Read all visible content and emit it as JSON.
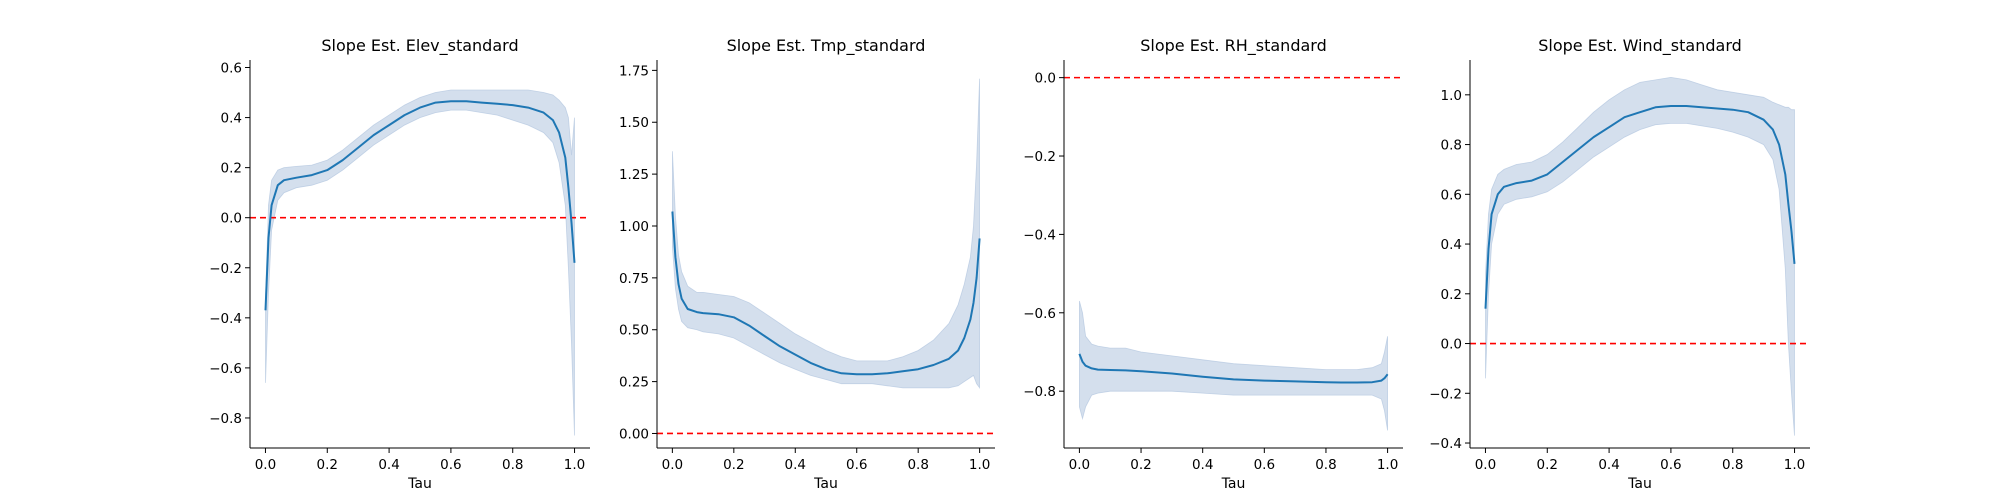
{
  "chart_data": [
    {
      "type": "line",
      "title": "Slope Est. Elev_standard",
      "xlabel": "Tau",
      "ylabel": "",
      "xlim": [
        -0.05,
        1.05
      ],
      "ylim": [
        -0.92,
        0.63
      ],
      "xticks": [
        0.0,
        0.2,
        0.4,
        0.6,
        0.8,
        1.0
      ],
      "xtick_labels": [
        "0.0",
        "0.2",
        "0.4",
        "0.6",
        "0.8",
        "1.0"
      ],
      "yticks": [
        -0.8,
        -0.6,
        -0.4,
        -0.2,
        0.0,
        0.2,
        0.4,
        0.6
      ],
      "ytick_labels": [
        "−0.8",
        "−0.6",
        "−0.4",
        "−0.2",
        "0.0",
        "0.2",
        "0.4",
        "0.6"
      ],
      "reference_line": 0.0,
      "x": [
        0.0,
        0.01,
        0.02,
        0.04,
        0.06,
        0.1,
        0.15,
        0.2,
        0.25,
        0.3,
        0.35,
        0.4,
        0.45,
        0.5,
        0.55,
        0.6,
        0.65,
        0.7,
        0.75,
        0.8,
        0.85,
        0.9,
        0.93,
        0.95,
        0.97,
        0.98,
        0.99,
        1.0
      ],
      "y": [
        -0.37,
        -0.08,
        0.05,
        0.13,
        0.15,
        0.16,
        0.17,
        0.19,
        0.23,
        0.28,
        0.33,
        0.37,
        0.41,
        0.44,
        0.46,
        0.465,
        0.465,
        0.46,
        0.455,
        0.45,
        0.44,
        0.42,
        0.39,
        0.34,
        0.24,
        0.12,
        -0.02,
        -0.18
      ],
      "lower": [
        -0.66,
        -0.3,
        -0.05,
        0.07,
        0.1,
        0.12,
        0.13,
        0.15,
        0.19,
        0.24,
        0.29,
        0.33,
        0.37,
        0.4,
        0.42,
        0.43,
        0.43,
        0.42,
        0.41,
        0.39,
        0.37,
        0.34,
        0.3,
        0.22,
        0.05,
        -0.2,
        -0.5,
        -0.87
      ],
      "upper": [
        -0.32,
        0.05,
        0.15,
        0.19,
        0.2,
        0.205,
        0.21,
        0.23,
        0.27,
        0.32,
        0.37,
        0.41,
        0.45,
        0.48,
        0.5,
        0.51,
        0.51,
        0.51,
        0.51,
        0.51,
        0.51,
        0.5,
        0.49,
        0.47,
        0.44,
        0.4,
        0.25,
        0.4
      ]
    },
    {
      "type": "line",
      "title": "Slope Est. Tmp_standard",
      "xlabel": "Tau",
      "ylabel": "",
      "xlim": [
        -0.05,
        1.05
      ],
      "ylim": [
        -0.07,
        1.8
      ],
      "xticks": [
        0.0,
        0.2,
        0.4,
        0.6,
        0.8,
        1.0
      ],
      "xtick_labels": [
        "0.0",
        "0.2",
        "0.4",
        "0.6",
        "0.8",
        "1.0"
      ],
      "yticks": [
        0.0,
        0.25,
        0.5,
        0.75,
        1.0,
        1.25,
        1.5,
        1.75
      ],
      "ytick_labels": [
        "0.00",
        "0.25",
        "0.50",
        "0.75",
        "1.00",
        "1.25",
        "1.50",
        "1.75"
      ],
      "reference_line": 0.0,
      "x": [
        0.0,
        0.01,
        0.02,
        0.03,
        0.05,
        0.08,
        0.1,
        0.15,
        0.2,
        0.25,
        0.3,
        0.35,
        0.4,
        0.45,
        0.5,
        0.55,
        0.6,
        0.65,
        0.7,
        0.75,
        0.8,
        0.85,
        0.9,
        0.93,
        0.95,
        0.97,
        0.98,
        0.99,
        1.0
      ],
      "y": [
        1.07,
        0.85,
        0.72,
        0.65,
        0.6,
        0.585,
        0.58,
        0.575,
        0.56,
        0.52,
        0.47,
        0.42,
        0.38,
        0.34,
        0.31,
        0.29,
        0.285,
        0.285,
        0.29,
        0.3,
        0.31,
        0.33,
        0.36,
        0.4,
        0.46,
        0.55,
        0.63,
        0.75,
        0.94
      ],
      "lower": [
        0.9,
        0.7,
        0.6,
        0.54,
        0.51,
        0.5,
        0.49,
        0.48,
        0.46,
        0.42,
        0.38,
        0.34,
        0.31,
        0.28,
        0.26,
        0.24,
        0.24,
        0.24,
        0.23,
        0.22,
        0.22,
        0.22,
        0.22,
        0.23,
        0.25,
        0.27,
        0.28,
        0.24,
        0.22
      ],
      "upper": [
        1.36,
        1.05,
        0.86,
        0.78,
        0.71,
        0.68,
        0.68,
        0.67,
        0.66,
        0.63,
        0.58,
        0.53,
        0.48,
        0.44,
        0.4,
        0.37,
        0.35,
        0.35,
        0.35,
        0.37,
        0.4,
        0.45,
        0.53,
        0.62,
        0.72,
        0.85,
        1.0,
        1.3,
        1.71
      ]
    },
    {
      "type": "line",
      "title": "Slope Est. RH_standard",
      "xlabel": "Tau",
      "ylabel": "",
      "xlim": [
        -0.05,
        1.05
      ],
      "ylim": [
        -0.945,
        0.045
      ],
      "xticks": [
        0.0,
        0.2,
        0.4,
        0.6,
        0.8,
        1.0
      ],
      "xtick_labels": [
        "0.0",
        "0.2",
        "0.4",
        "0.6",
        "0.8",
        "1.0"
      ],
      "yticks": [
        -0.8,
        -0.6,
        -0.4,
        -0.2,
        0.0
      ],
      "ytick_labels": [
        "−0.8",
        "−0.6",
        "−0.4",
        "−0.2",
        "0.0"
      ],
      "reference_line": 0.0,
      "x": [
        0.0,
        0.01,
        0.02,
        0.04,
        0.06,
        0.1,
        0.15,
        0.2,
        0.3,
        0.4,
        0.5,
        0.6,
        0.7,
        0.8,
        0.85,
        0.9,
        0.95,
        0.98,
        0.99,
        1.0
      ],
      "y": [
        -0.705,
        -0.725,
        -0.735,
        -0.742,
        -0.745,
        -0.746,
        -0.747,
        -0.749,
        -0.755,
        -0.763,
        -0.77,
        -0.773,
        -0.775,
        -0.777,
        -0.778,
        -0.778,
        -0.777,
        -0.773,
        -0.767,
        -0.757
      ],
      "lower": [
        -0.84,
        -0.87,
        -0.84,
        -0.81,
        -0.805,
        -0.8,
        -0.8,
        -0.8,
        -0.8,
        -0.805,
        -0.81,
        -0.81,
        -0.81,
        -0.81,
        -0.81,
        -0.81,
        -0.81,
        -0.82,
        -0.85,
        -0.9
      ],
      "upper": [
        -0.57,
        -0.6,
        -0.66,
        -0.68,
        -0.685,
        -0.69,
        -0.69,
        -0.7,
        -0.71,
        -0.72,
        -0.73,
        -0.735,
        -0.74,
        -0.745,
        -0.745,
        -0.745,
        -0.74,
        -0.73,
        -0.7,
        -0.66
      ]
    },
    {
      "type": "line",
      "title": "Slope Est. Wind_standard",
      "xlabel": "Tau",
      "ylabel": "",
      "xlim": [
        -0.05,
        1.05
      ],
      "ylim": [
        -0.42,
        1.14
      ],
      "xticks": [
        0.0,
        0.2,
        0.4,
        0.6,
        0.8,
        1.0
      ],
      "xtick_labels": [
        "0.0",
        "0.2",
        "0.4",
        "0.6",
        "0.8",
        "1.0"
      ],
      "yticks": [
        -0.4,
        -0.2,
        0.0,
        0.2,
        0.4,
        0.6,
        0.8,
        1.0
      ],
      "ytick_labels": [
        "−0.4",
        "−0.2",
        "0.0",
        "0.2",
        "0.4",
        "0.6",
        "0.8",
        "1.0"
      ],
      "reference_line": 0.0,
      "x": [
        0.0,
        0.01,
        0.02,
        0.04,
        0.06,
        0.1,
        0.15,
        0.2,
        0.25,
        0.3,
        0.35,
        0.4,
        0.45,
        0.5,
        0.55,
        0.6,
        0.65,
        0.7,
        0.75,
        0.8,
        0.85,
        0.9,
        0.93,
        0.95,
        0.97,
        0.98,
        0.99,
        1.0
      ],
      "y": [
        0.14,
        0.38,
        0.52,
        0.6,
        0.63,
        0.645,
        0.655,
        0.68,
        0.73,
        0.78,
        0.83,
        0.87,
        0.91,
        0.93,
        0.95,
        0.955,
        0.955,
        0.95,
        0.945,
        0.94,
        0.93,
        0.9,
        0.86,
        0.8,
        0.68,
        0.56,
        0.45,
        0.32
      ],
      "lower": [
        -0.14,
        0.2,
        0.4,
        0.52,
        0.56,
        0.58,
        0.59,
        0.61,
        0.65,
        0.7,
        0.75,
        0.79,
        0.83,
        0.86,
        0.88,
        0.885,
        0.885,
        0.875,
        0.865,
        0.85,
        0.83,
        0.8,
        0.74,
        0.62,
        0.3,
        0.0,
        -0.2,
        -0.37
      ],
      "upper": [
        0.28,
        0.52,
        0.62,
        0.68,
        0.7,
        0.72,
        0.73,
        0.76,
        0.81,
        0.87,
        0.93,
        0.98,
        1.02,
        1.05,
        1.06,
        1.07,
        1.06,
        1.04,
        1.02,
        1.01,
        1.0,
        0.99,
        0.97,
        0.96,
        0.95,
        0.95,
        0.94,
        0.94
      ]
    }
  ],
  "colors": {
    "line": "#1f77b4",
    "band": "#b0c4de",
    "reference": "#ff0000"
  }
}
